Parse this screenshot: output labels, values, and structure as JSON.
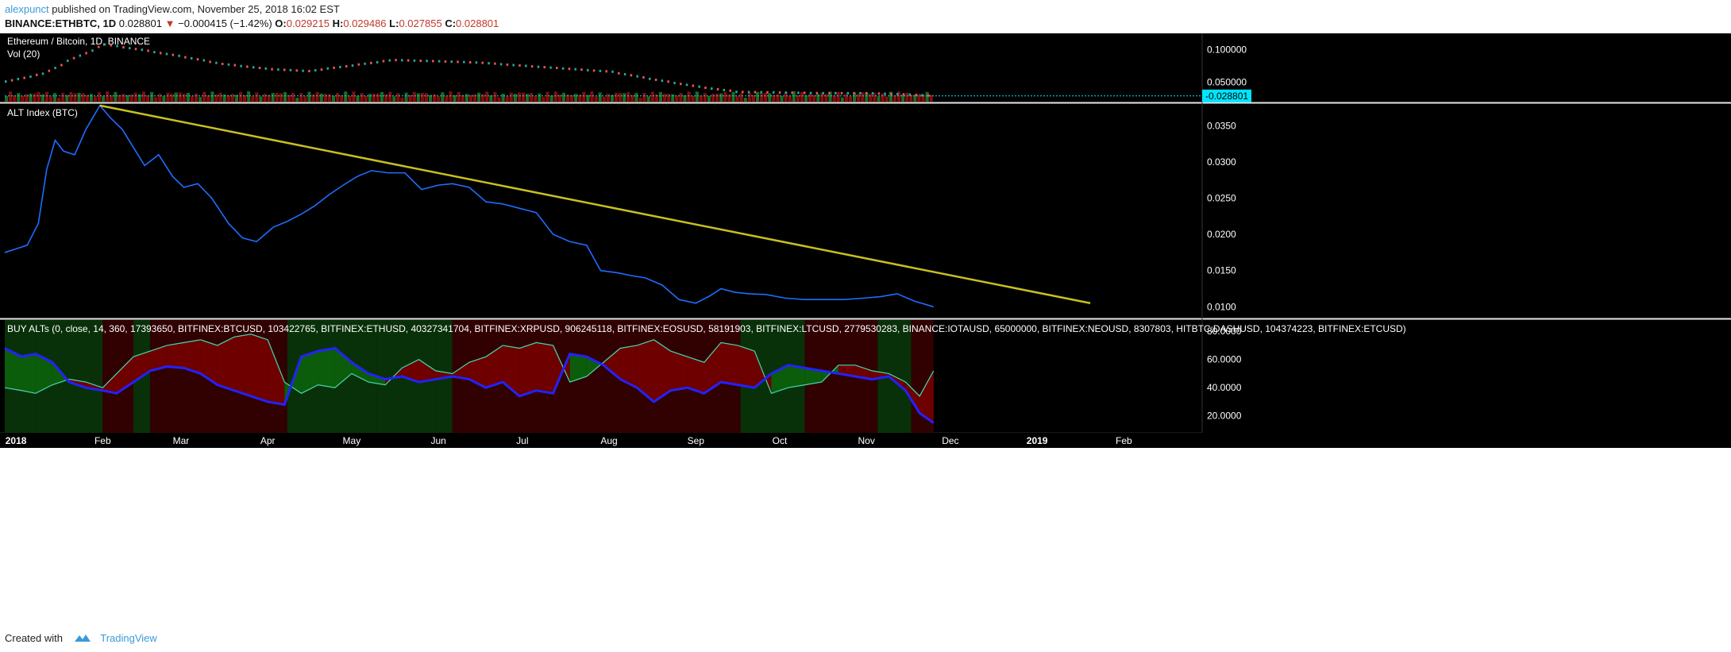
{
  "header": {
    "author": "alexpunct",
    "published": " published on TradingView.com, November 25, 2018 16:02 EST",
    "symbol": "BINANCE:ETHBTC, 1D",
    "last": "0.028801",
    "change": "−0.000415 (−1.42%)",
    "ohlc": {
      "O": "0.029215",
      "H": "0.029486",
      "L": "0.027855",
      "C": "0.028801"
    }
  },
  "footer": {
    "created_with": "Created with",
    "brand": "TradingView"
  },
  "colors": {
    "background": "#000000",
    "price_up": "#26a69a",
    "price_down": "#ef5350",
    "alt_line": "#1e6dff",
    "trend_line": "#c8c020",
    "buy_fill": "#0b5d0b",
    "sell_fill": "#6e0000",
    "osc_fast": "#2222ff",
    "osc_slow": "#44d8b0",
    "price_tag": "#00e5ff"
  },
  "chart_data": [
    {
      "type": "line",
      "title": "Ethereum / Bitcoin, 1D, BINANCE",
      "subtitle": "Vol (20)",
      "y_ticks": [
        "0.100000",
        "0.050000"
      ],
      "ylim": [
        0.02,
        0.125
      ],
      "last_price_label": "0.028801",
      "x": [
        "2017-12-28",
        "2018-01-10",
        "2018-01-20",
        "2018-02-01",
        "2018-02-15",
        "2018-03-01",
        "2018-03-15",
        "2018-04-01",
        "2018-04-15",
        "2018-05-01",
        "2018-05-15",
        "2018-06-01",
        "2018-06-15",
        "2018-07-01",
        "2018-07-15",
        "2018-08-01",
        "2018-08-15",
        "2018-09-01",
        "2018-09-15",
        "2018-10-01",
        "2018-10-15",
        "2018-11-01",
        "2018-11-15",
        "2018-11-25"
      ],
      "values": [
        0.051,
        0.063,
        0.085,
        0.108,
        0.099,
        0.089,
        0.078,
        0.07,
        0.067,
        0.076,
        0.084,
        0.082,
        0.08,
        0.075,
        0.071,
        0.066,
        0.055,
        0.043,
        0.035,
        0.034,
        0.033,
        0.033,
        0.031,
        0.0288
      ]
    },
    {
      "type": "line",
      "title": "ALT Index (BTC)",
      "y_ticks": [
        "0.0350",
        "0.0300",
        "0.0250",
        "0.0200",
        "0.0150",
        "0.0100"
      ],
      "ylim": [
        0.0085,
        0.038
      ],
      "series": [
        {
          "x": [
            "2017-12-28",
            "2018-01-01",
            "2018-01-05",
            "2018-01-09",
            "2018-01-12",
            "2018-01-15",
            "2018-01-18",
            "2018-01-22",
            "2018-01-26",
            "2018-01-31",
            "2018-02-04",
            "2018-02-08",
            "2018-02-12",
            "2018-02-16",
            "2018-02-21",
            "2018-02-26",
            "2018-03-02",
            "2018-03-07",
            "2018-03-12",
            "2018-03-18",
            "2018-03-23",
            "2018-03-28",
            "2018-04-03",
            "2018-04-08",
            "2018-04-13",
            "2018-04-18",
            "2018-04-23",
            "2018-04-28",
            "2018-05-03",
            "2018-05-08",
            "2018-05-14",
            "2018-05-20",
            "2018-05-26",
            "2018-06-01",
            "2018-06-06",
            "2018-06-12",
            "2018-06-18",
            "2018-06-24",
            "2018-06-30",
            "2018-07-06",
            "2018-07-12",
            "2018-07-18",
            "2018-07-24",
            "2018-07-29",
            "2018-08-04",
            "2018-08-09",
            "2018-08-14",
            "2018-08-20",
            "2018-08-26",
            "2018-09-01",
            "2018-09-06",
            "2018-09-10",
            "2018-09-15",
            "2018-09-20",
            "2018-09-26",
            "2018-10-03",
            "2018-10-10",
            "2018-10-17",
            "2018-10-24",
            "2018-10-31",
            "2018-11-06",
            "2018-11-12",
            "2018-11-18",
            "2018-11-25"
          ],
          "values": [
            0.0175,
            0.018,
            0.0185,
            0.0215,
            0.029,
            0.033,
            0.0315,
            0.031,
            0.0345,
            0.0378,
            0.036,
            0.0345,
            0.032,
            0.0295,
            0.031,
            0.028,
            0.0265,
            0.027,
            0.025,
            0.0215,
            0.0195,
            0.019,
            0.021,
            0.0218,
            0.0228,
            0.024,
            0.0255,
            0.0268,
            0.028,
            0.0288,
            0.0285,
            0.0285,
            0.0262,
            0.0268,
            0.027,
            0.0265,
            0.0245,
            0.0242,
            0.0236,
            0.023,
            0.02,
            0.019,
            0.0185,
            0.015,
            0.0147,
            0.0143,
            0.014,
            0.013,
            0.011,
            0.0105,
            0.0115,
            0.0125,
            0.012,
            0.0118,
            0.0117,
            0.0112,
            0.011,
            0.011,
            0.011,
            0.0112,
            0.0114,
            0.0118,
            0.0108,
            0.01
          ]
        },
        {
          "x": [
            "2018-01-31",
            "2019-01-20"
          ],
          "values": [
            0.0378,
            0.0105
          ]
        }
      ]
    },
    {
      "type": "area",
      "title": "BUY ALTs (0, close, 14, 360, 17393650, BITFINEX:BTCUSD, 103422765, BITFINEX:ETHUSD, 40327341704, BITFINEX:XRPUSD, 906245118, BITFINEX:EOSUSD, 58191903, BITFINEX:LTCUSD, 2779530283, BINANCE:IOTAUSD, 65000000, BITFINEX:NEOUSD, 8307803, HITBTC:DASHUSD, 104374223, BITFINEX:ETCUSD)",
      "y_ticks": [
        "80.0000",
        "60.0000",
        "40.0000",
        "20.0000"
      ],
      "ylim": [
        8,
        88
      ],
      "series": [
        {
          "x": [
            "2017-12-28",
            "2018-01-03",
            "2018-01-08",
            "2018-01-14",
            "2018-01-20",
            "2018-01-26",
            "2018-02-01",
            "2018-02-06",
            "2018-02-12",
            "2018-02-18",
            "2018-02-24",
            "2018-03-02",
            "2018-03-08",
            "2018-03-14",
            "2018-03-20",
            "2018-03-26",
            "2018-04-01",
            "2018-04-07",
            "2018-04-13",
            "2018-04-19",
            "2018-04-25",
            "2018-05-01",
            "2018-05-07",
            "2018-05-13",
            "2018-05-19",
            "2018-05-25",
            "2018-05-31",
            "2018-06-06",
            "2018-06-12",
            "2018-06-18",
            "2018-06-24",
            "2018-06-30",
            "2018-07-06",
            "2018-07-12",
            "2018-07-18",
            "2018-07-24",
            "2018-07-30",
            "2018-08-05",
            "2018-08-11",
            "2018-08-17",
            "2018-08-23",
            "2018-08-29",
            "2018-09-04",
            "2018-09-10",
            "2018-09-16",
            "2018-09-22",
            "2018-09-28",
            "2018-10-04",
            "2018-10-10",
            "2018-10-16",
            "2018-10-22",
            "2018-10-28",
            "2018-11-03",
            "2018-11-09",
            "2018-11-15",
            "2018-11-20",
            "2018-11-25"
          ],
          "values": [
            68,
            62,
            64,
            58,
            44,
            40,
            38,
            36,
            44,
            52,
            55,
            54,
            50,
            42,
            38,
            34,
            30,
            28,
            62,
            66,
            68,
            58,
            50,
            46,
            48,
            44,
            46,
            48,
            46,
            40,
            44,
            34,
            38,
            36,
            64,
            62,
            56,
            46,
            40,
            30,
            38,
            40,
            36,
            44,
            42,
            40,
            50,
            56,
            54,
            52,
            50,
            48,
            46,
            48,
            38,
            22,
            15
          ]
        },
        {
          "x": [
            "2017-12-28",
            "2018-01-03",
            "2018-01-08",
            "2018-01-14",
            "2018-01-20",
            "2018-01-26",
            "2018-02-01",
            "2018-02-06",
            "2018-02-12",
            "2018-02-18",
            "2018-02-24",
            "2018-03-02",
            "2018-03-08",
            "2018-03-14",
            "2018-03-20",
            "2018-03-26",
            "2018-04-01",
            "2018-04-07",
            "2018-04-13",
            "2018-04-19",
            "2018-04-25",
            "2018-05-01",
            "2018-05-07",
            "2018-05-13",
            "2018-05-19",
            "2018-05-25",
            "2018-05-31",
            "2018-06-06",
            "2018-06-12",
            "2018-06-18",
            "2018-06-24",
            "2018-06-30",
            "2018-07-06",
            "2018-07-12",
            "2018-07-18",
            "2018-07-24",
            "2018-07-30",
            "2018-08-05",
            "2018-08-11",
            "2018-08-17",
            "2018-08-23",
            "2018-08-29",
            "2018-09-04",
            "2018-09-10",
            "2018-09-16",
            "2018-09-22",
            "2018-09-28",
            "2018-10-04",
            "2018-10-10",
            "2018-10-16",
            "2018-10-22",
            "2018-10-28",
            "2018-11-03",
            "2018-11-09",
            "2018-11-15",
            "2018-11-20",
            "2018-11-25"
          ],
          "values": [
            40,
            38,
            36,
            42,
            46,
            44,
            40,
            50,
            62,
            66,
            70,
            72,
            74,
            70,
            76,
            78,
            74,
            44,
            36,
            42,
            40,
            50,
            44,
            42,
            54,
            60,
            52,
            50,
            58,
            62,
            70,
            68,
            72,
            70,
            44,
            48,
            58,
            68,
            70,
            74,
            66,
            62,
            58,
            72,
            70,
            66,
            36,
            40,
            42,
            44,
            56,
            56,
            52,
            50,
            44,
            34,
            52
          ]
        }
      ],
      "zones": [
        {
          "from": "2017-12-28",
          "to": "2018-01-03",
          "signal": "buy"
        },
        {
          "from": "2018-01-03",
          "to": "2018-01-08",
          "signal": "buy"
        },
        {
          "from": "2018-01-08",
          "to": "2018-01-18",
          "signal": "buy"
        },
        {
          "from": "2018-01-18",
          "to": "2018-02-01",
          "signal": "buy"
        },
        {
          "from": "2018-02-01",
          "to": "2018-02-12",
          "signal": "sell"
        },
        {
          "from": "2018-02-12",
          "to": "2018-02-18",
          "signal": "buy"
        },
        {
          "from": "2018-02-18",
          "to": "2018-04-08",
          "signal": "sell"
        },
        {
          "from": "2018-04-08",
          "to": "2018-05-10",
          "signal": "buy"
        },
        {
          "from": "2018-05-10",
          "to": "2018-05-31",
          "signal": "buy"
        },
        {
          "from": "2018-05-31",
          "to": "2018-06-06",
          "signal": "buy"
        },
        {
          "from": "2018-06-06",
          "to": "2018-09-17",
          "signal": "sell"
        },
        {
          "from": "2018-09-17",
          "to": "2018-10-10",
          "signal": "buy"
        },
        {
          "from": "2018-10-10",
          "to": "2018-11-05",
          "signal": "sell"
        },
        {
          "from": "2018-11-05",
          "to": "2018-11-17",
          "signal": "buy"
        },
        {
          "from": "2018-11-17",
          "to": "2018-11-25",
          "signal": "sell"
        }
      ]
    }
  ],
  "x_axis": {
    "labels": [
      {
        "text": "2018",
        "date": "2018-01-01",
        "bold": true
      },
      {
        "text": "Feb",
        "date": "2018-02-01"
      },
      {
        "text": "Mar",
        "date": "2018-03-01"
      },
      {
        "text": "Apr",
        "date": "2018-04-01"
      },
      {
        "text": "May",
        "date": "2018-05-01"
      },
      {
        "text": "Jun",
        "date": "2018-06-01"
      },
      {
        "text": "Jul",
        "date": "2018-07-01"
      },
      {
        "text": "Aug",
        "date": "2018-08-01"
      },
      {
        "text": "Sep",
        "date": "2018-09-01"
      },
      {
        "text": "Oct",
        "date": "2018-10-01"
      },
      {
        "text": "Nov",
        "date": "2018-11-01"
      },
      {
        "text": "Dec",
        "date": "2018-12-01"
      },
      {
        "text": "2019",
        "date": "2019-01-01",
        "bold": true
      },
      {
        "text": "Feb",
        "date": "2019-02-01"
      }
    ]
  }
}
